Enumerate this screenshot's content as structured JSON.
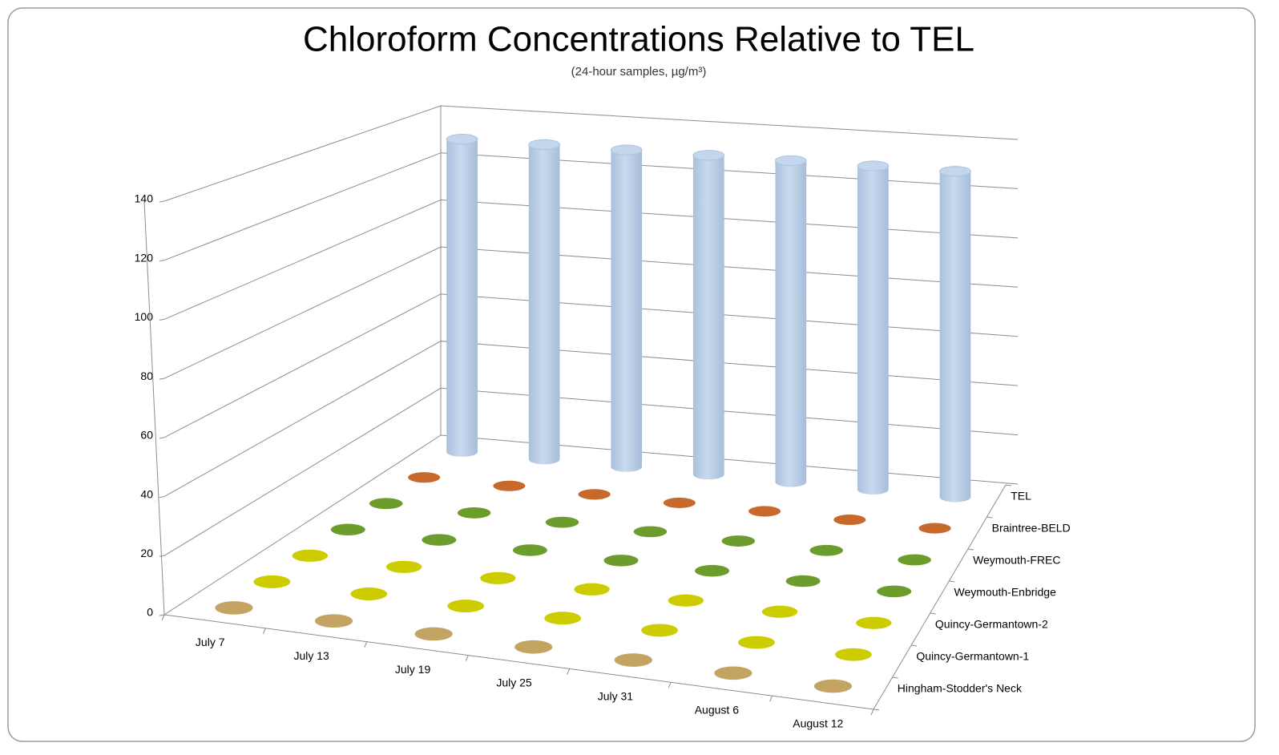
{
  "chart_data": {
    "type": "cylinder3d",
    "title": "Chloroform Concentrations Relative to TEL",
    "subtitle": "(24-hour samples,  µg/m³)",
    "categories": [
      "July 7",
      "July 13",
      "July 19",
      "July 25",
      "July 31",
      "August 6",
      "August 12"
    ],
    "series": [
      {
        "name": "Hingham-Stodder's Neck",
        "color": "#c4a463",
        "values": [
          0.2,
          0.2,
          0.2,
          0.2,
          0.2,
          0.2,
          0.2
        ]
      },
      {
        "name": "Quincy-Germantown-1",
        "color": "#cccc00",
        "values": [
          0.2,
          0.2,
          0.2,
          0.2,
          0.2,
          0.2,
          0.2
        ]
      },
      {
        "name": "Quincy-Germantown-2",
        "color": "#cccc00",
        "values": [
          0.2,
          0.2,
          0.2,
          0.2,
          0.2,
          0.2,
          0.2
        ]
      },
      {
        "name": "Weymouth-Enbridge",
        "color": "#6b9c2c",
        "values": [
          0.2,
          0.2,
          0.2,
          0.2,
          0.2,
          0.2,
          0.2
        ]
      },
      {
        "name": "Weymouth-FREC",
        "color": "#6b9c2c",
        "values": [
          0.2,
          0.2,
          0.2,
          0.2,
          0.2,
          0.2,
          0.2
        ]
      },
      {
        "name": "Braintree-BELD",
        "color": "#c8692c",
        "values": [
          0.2,
          0.2,
          0.2,
          0.2,
          0.2,
          0.2,
          0.2
        ]
      },
      {
        "name": "TEL",
        "color": "#b9cde5",
        "values": [
          130,
          130,
          130,
          130,
          130,
          130,
          130
        ]
      }
    ],
    "ylim": [
      0,
      140
    ],
    "yticks": [
      0,
      20,
      40,
      60,
      80,
      100,
      120,
      140
    ],
    "grid": true
  }
}
